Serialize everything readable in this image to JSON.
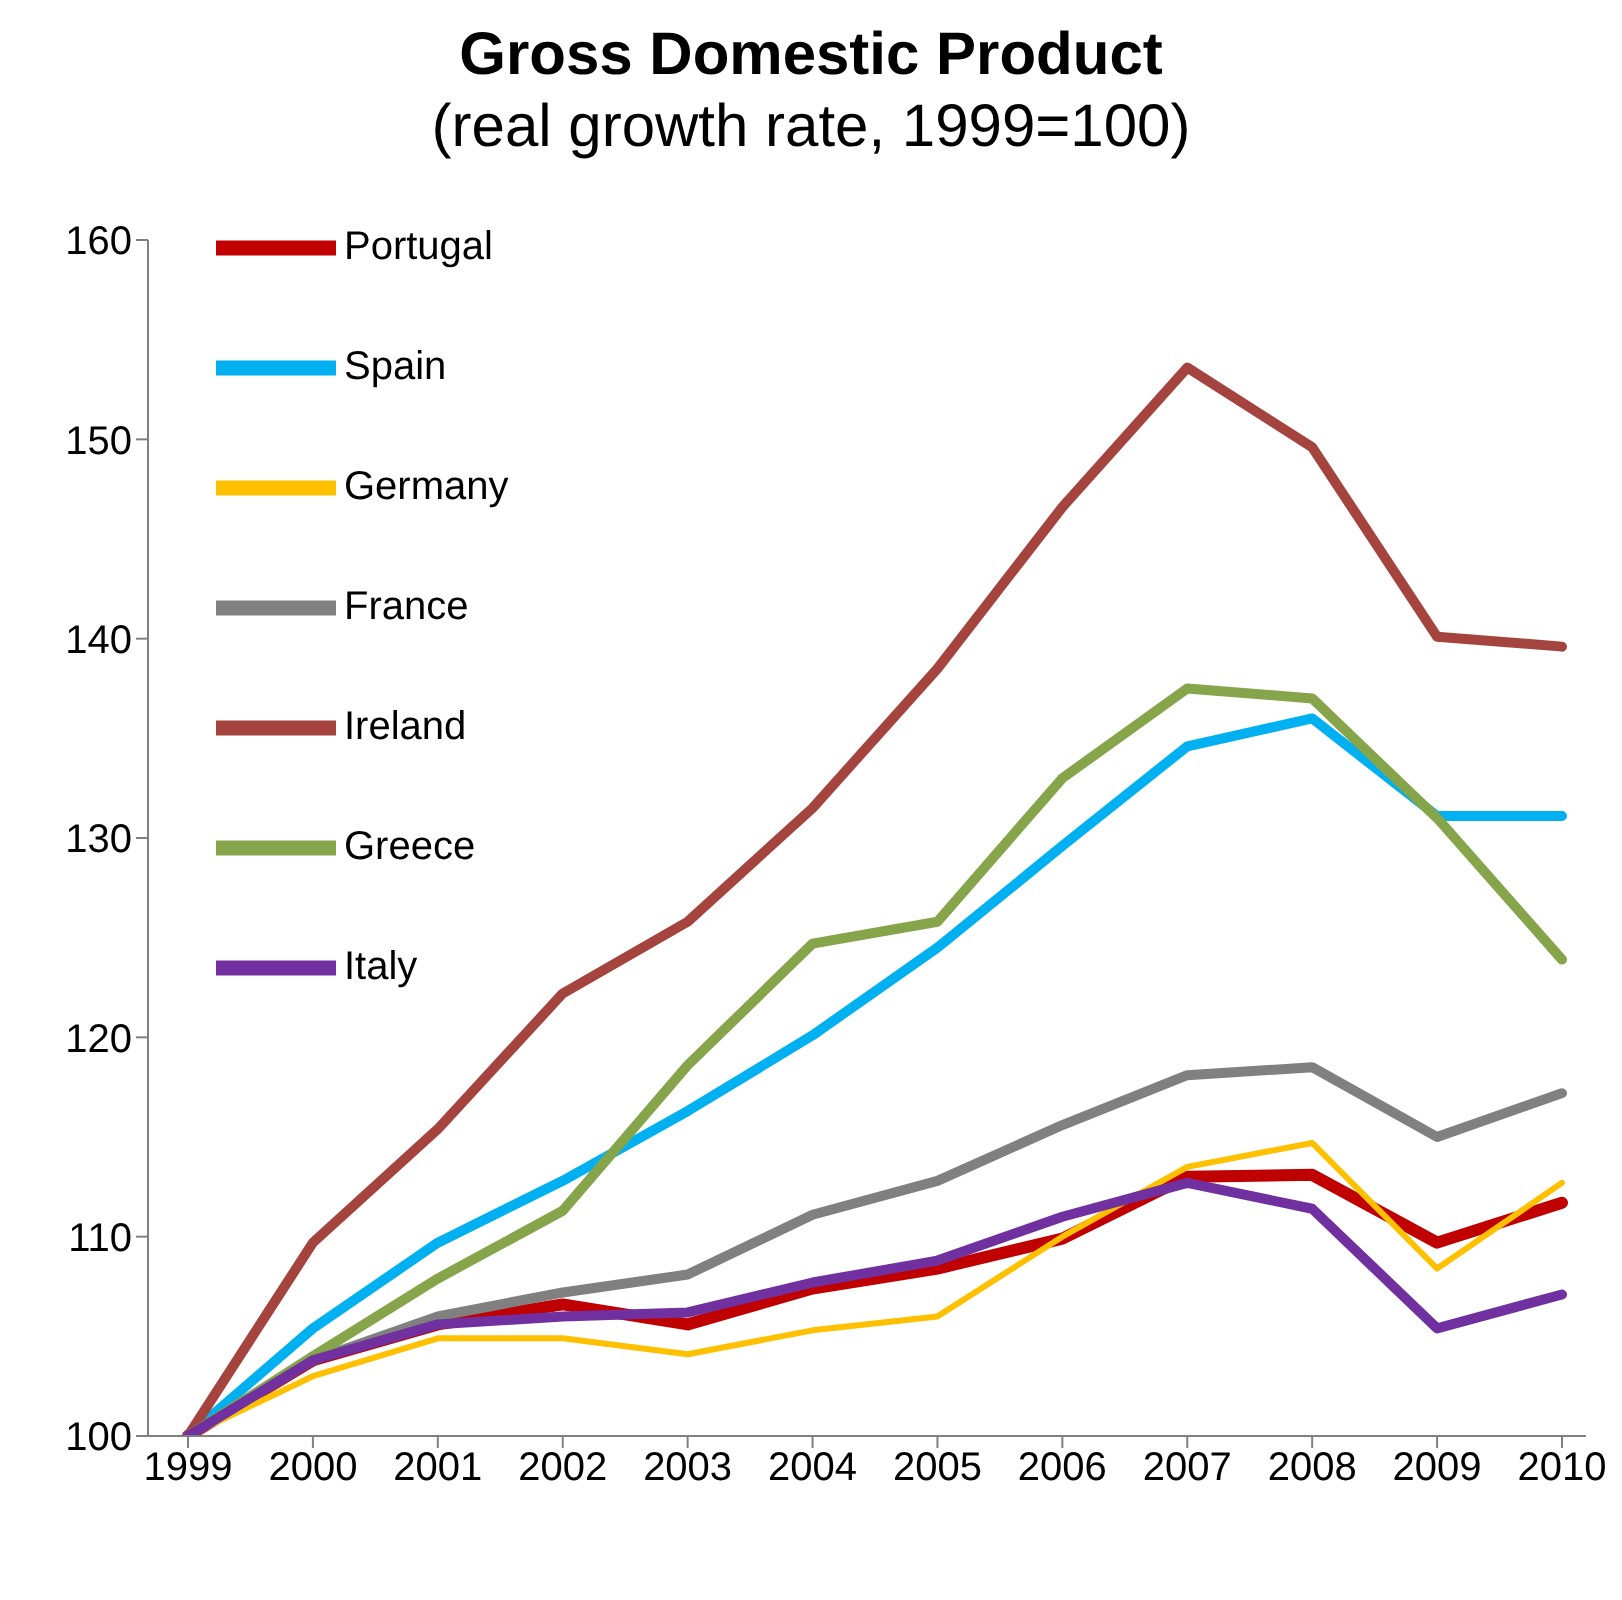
{
  "chart_data": {
    "type": "line",
    "title": "Gross Domestic Product",
    "subtitle": "(real growth rate, 1999=100)",
    "categories": [
      "1999",
      "2000",
      "2001",
      "2002",
      "2003",
      "2004",
      "2005",
      "2006",
      "2007",
      "2008",
      "2009",
      "2010"
    ],
    "ylim": [
      100,
      160
    ],
    "yticks": [
      100,
      110,
      120,
      130,
      140,
      150,
      160
    ],
    "grid": false,
    "legend": "top left",
    "marker": "none",
    "line_style": "solid",
    "series": [
      {
        "name": "Portugal",
        "color": "#c00000",
        "values": [
          100,
          103.8,
          105.6,
          106.6,
          105.6,
          107.4,
          108.4,
          109.9,
          113.0,
          113.1,
          109.7,
          111.7
        ]
      },
      {
        "name": "Spain",
        "color": "#00b0f0",
        "values": [
          100,
          105.4,
          109.7,
          112.8,
          116.3,
          120.1,
          124.5,
          129.6,
          134.6,
          136.0,
          131.1,
          131.1
        ]
      },
      {
        "name": "Germany",
        "color": "#ffc000",
        "values": [
          100,
          103.0,
          104.9,
          104.9,
          104.1,
          105.3,
          106.0,
          110.0,
          113.5,
          114.7,
          108.4,
          112.7
        ]
      },
      {
        "name": "France",
        "color": "#808080",
        "values": [
          100,
          103.8,
          106.0,
          107.2,
          108.1,
          111.1,
          112.8,
          115.6,
          118.1,
          118.5,
          115.0,
          117.2
        ]
      },
      {
        "name": "Ireland",
        "color": "#a5443f",
        "values": [
          100,
          109.7,
          115.4,
          122.2,
          125.8,
          131.5,
          138.5,
          146.6,
          153.6,
          149.6,
          140.1,
          139.6
        ]
      },
      {
        "name": "Greece",
        "color": "#86a44a",
        "values": [
          100,
          104.0,
          107.9,
          111.3,
          118.6,
          124.7,
          125.8,
          133.0,
          137.5,
          137.0,
          131.0,
          123.9
        ]
      },
      {
        "name": "Italy",
        "color": "#7030a0",
        "values": [
          100,
          103.8,
          105.6,
          106.0,
          106.2,
          107.7,
          108.8,
          111.0,
          112.7,
          111.4,
          105.4,
          107.1
        ]
      }
    ]
  }
}
